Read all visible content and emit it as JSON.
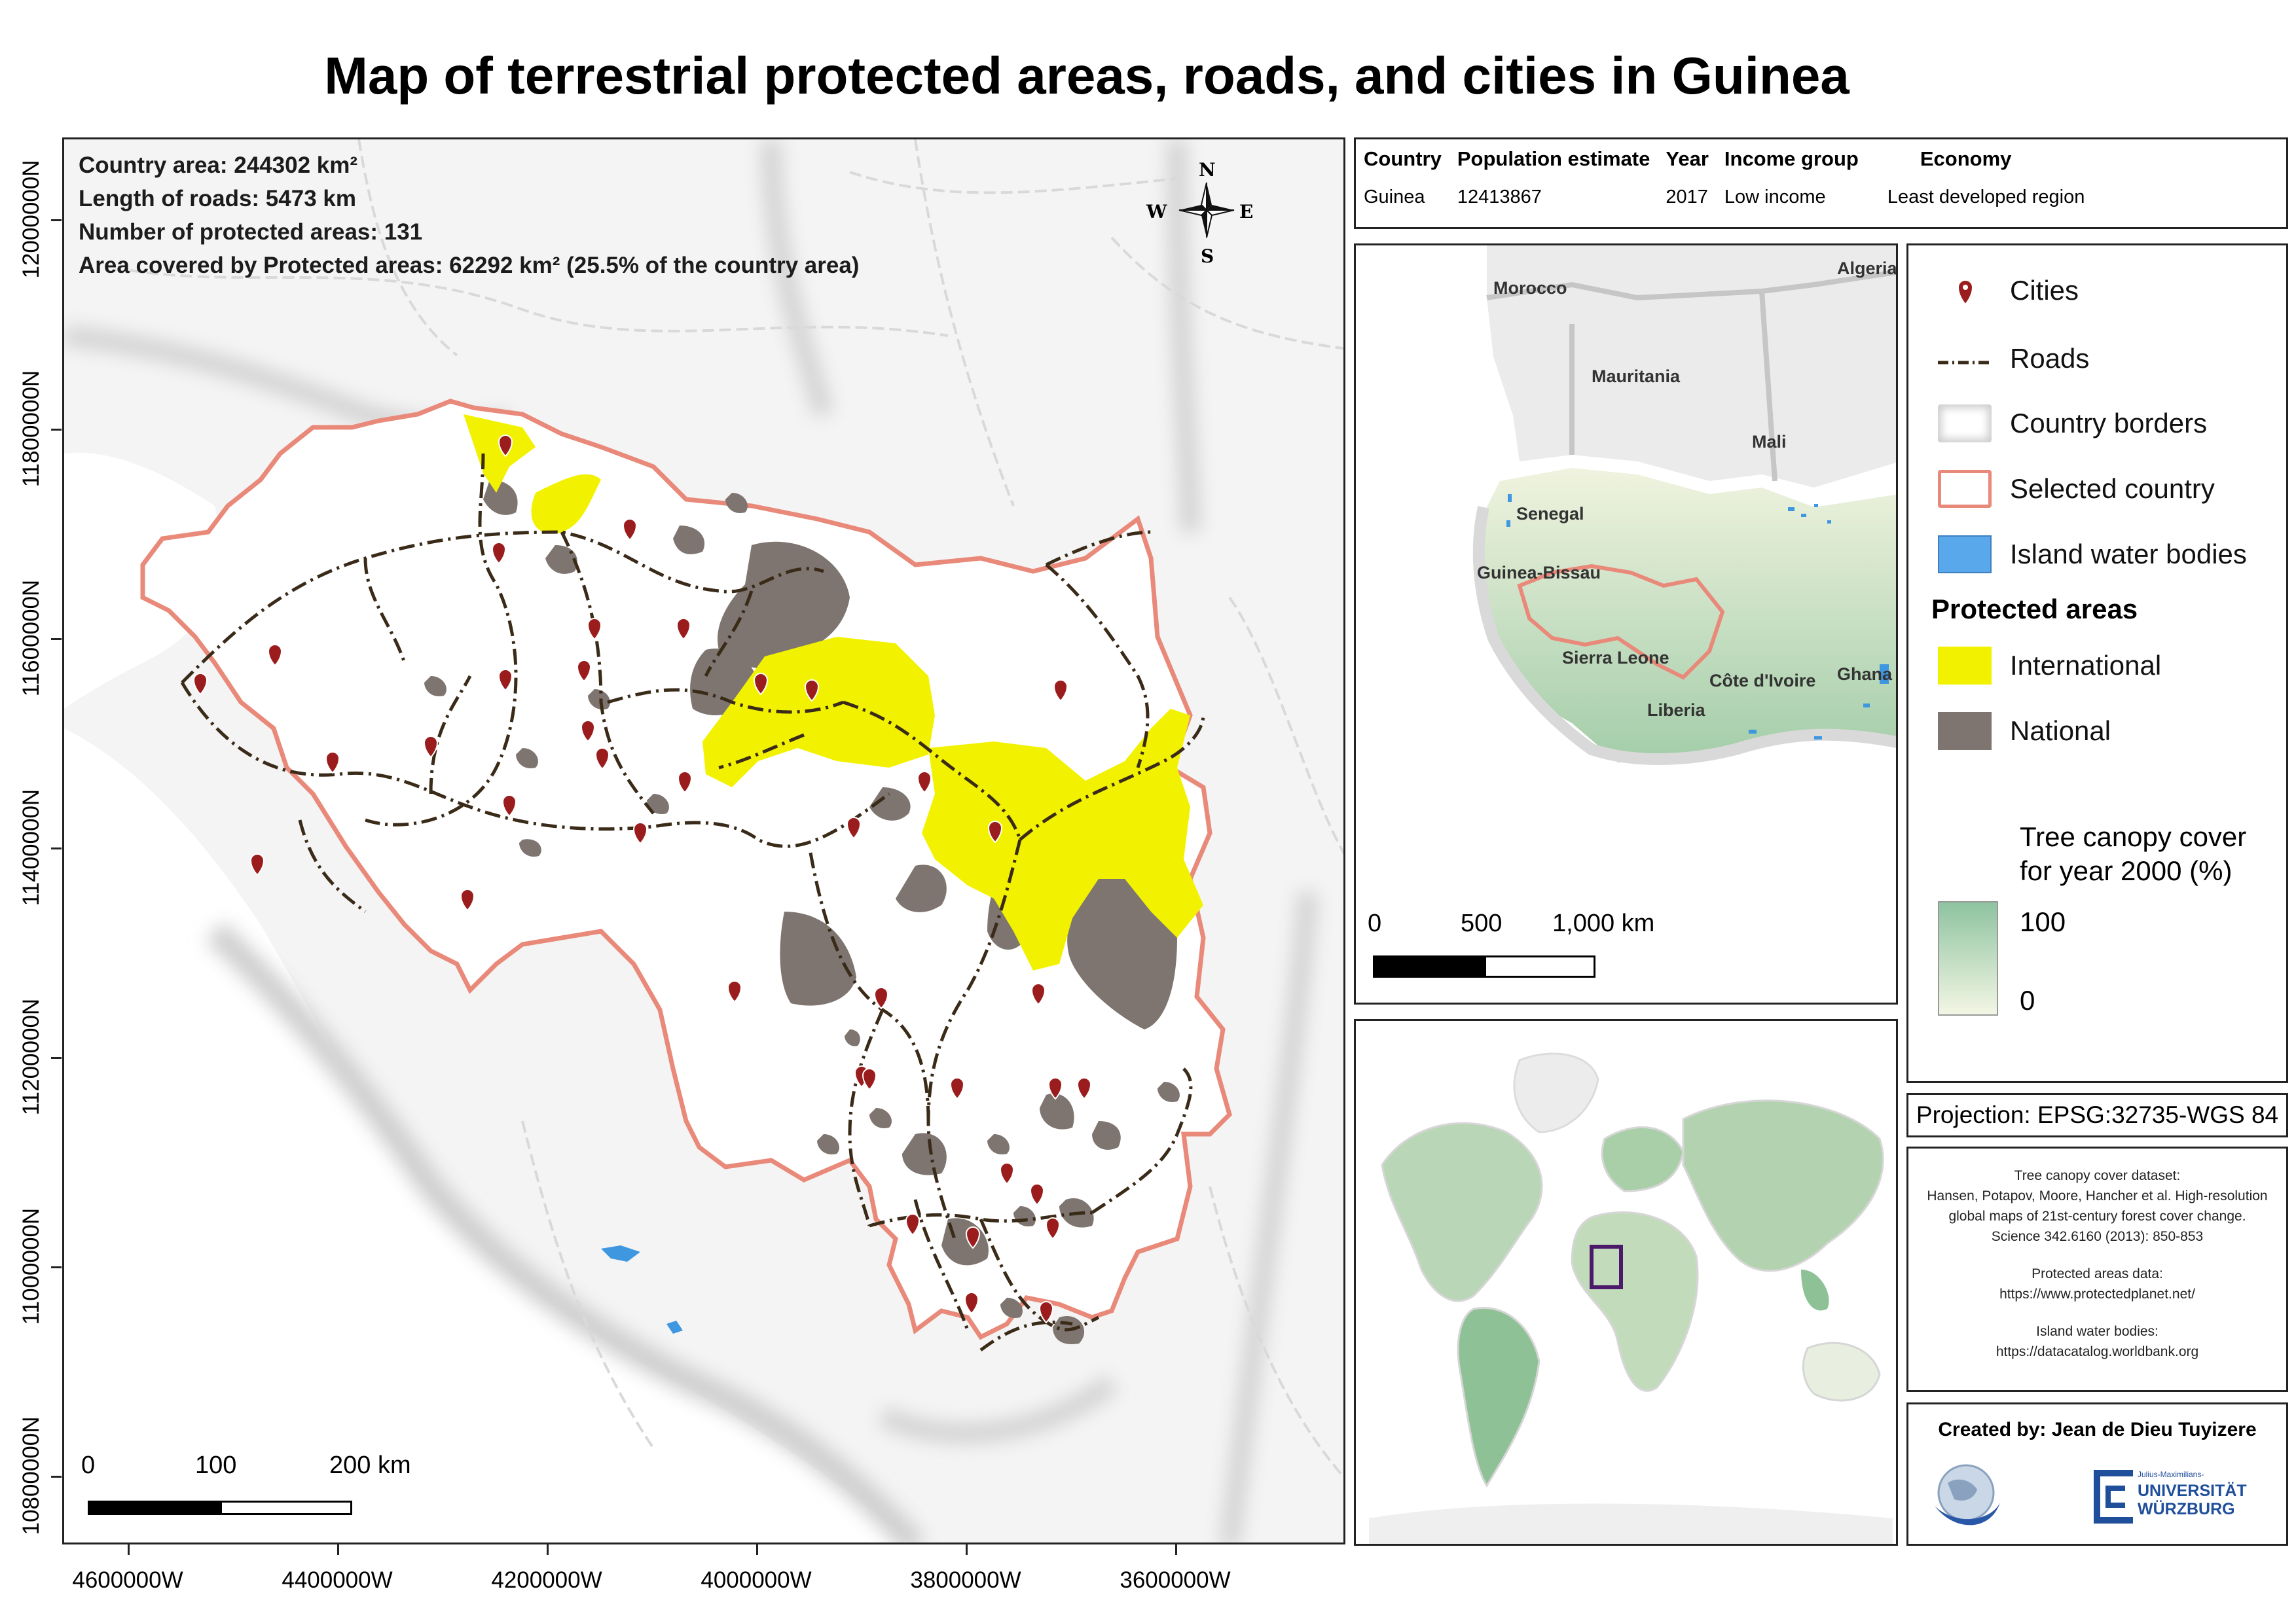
{
  "title": "Map of terrestrial protected areas, roads, and cities in Guinea",
  "stats": {
    "country_area": "Country area: 244302 km²",
    "roads_length": "Length of roads: 5473 km",
    "protected_count": "Number of protected areas: 131",
    "protected_coverage": "Area covered by Protected areas: 62292 km² (25.5% of the country area)"
  },
  "compass": {
    "n": "N",
    "s": "S",
    "e": "E",
    "w": "W"
  },
  "main_scale": {
    "ticks": [
      "0",
      "100",
      "200 km"
    ]
  },
  "axes": {
    "x_ticks": [
      "4600000W",
      "4400000W",
      "4200000W",
      "4000000W",
      "3800000W",
      "3600000W"
    ],
    "y_ticks": [
      "12000000N",
      "11800000N",
      "11600000N",
      "11400000N",
      "11200000N",
      "11000000N",
      "10800000N"
    ]
  },
  "info_table": {
    "headers": [
      "Country",
      "Population estimate",
      "Year",
      "Income group",
      "Economy"
    ],
    "row": [
      "Guinea",
      "12413867",
      "2017",
      "Low income",
      "Least developed region"
    ]
  },
  "region_labels": [
    "Morocco",
    "Algeria",
    "Mauritania",
    "Mali",
    "Senegal",
    "Guinea-Bissau",
    "Sierra Leone",
    "Côte d'Ivoire",
    "Ghana",
    "Liberia"
  ],
  "region_scale": {
    "ticks": [
      "0",
      "500",
      "1,000 km"
    ]
  },
  "legend": {
    "items": [
      {
        "label": "Cities",
        "icon": "city-marker-icon"
      },
      {
        "label": "Roads",
        "icon": "dashed-road-line"
      },
      {
        "label": "Country borders",
        "icon": "grey-border-swatch"
      },
      {
        "label": "Selected country",
        "icon": "red-border-swatch"
      },
      {
        "label": "Island water bodies",
        "icon": "blue-water-swatch"
      }
    ],
    "protected_heading": "Protected areas",
    "protected_items": [
      {
        "label": "International",
        "color": "#f2f200"
      },
      {
        "label": "National",
        "color": "#7e7570"
      }
    ],
    "canopy_title_1": "Tree canopy cover",
    "canopy_title_2": "for year 2000 (%)",
    "canopy_max": "100",
    "canopy_min": "0",
    "colors": {
      "road": "#3a2a18",
      "city": "#9b1c1c",
      "selected_border": "#e9897a",
      "water": "#3f97e0",
      "canopy_high": "#8ec3a0",
      "canopy_low": "#f3f6e4"
    }
  },
  "projection": "Projection: EPSG:32735-WGS 84",
  "sources": {
    "canopy": [
      "Tree canopy cover dataset:",
      "Hansen, Potapov, Moore, Hancher et al. High-resolution",
      "global maps of 21st-century forest cover change.",
      "Science 342.6160 (2013): 850-853"
    ],
    "protected": [
      "Protected areas data:",
      "https://www.protectedplanet.net/"
    ],
    "water": [
      "Island water bodies:",
      "https://datacatalog.worldbank.org"
    ]
  },
  "credits": {
    "created_by": "Created by: Jean de Dieu Tuyizere",
    "university_top": "Julius-Maximilians-",
    "university_name_1": "UNIVERSITÄT",
    "university_name_2": "WÜRZBURG"
  }
}
